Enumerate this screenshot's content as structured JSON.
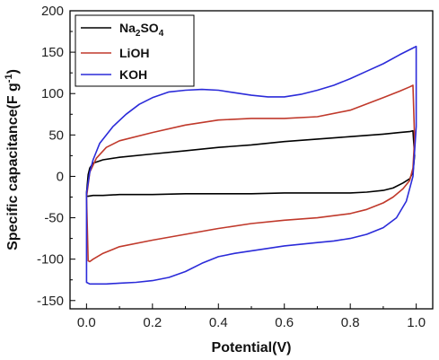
{
  "chart_data": {
    "type": "line",
    "xlabel": "Potential(V)",
    "ylabel": "Specific capacitance(F g",
    "ylabel_sup": "-1",
    "ylabel_end": ")",
    "xlim": [
      -0.05,
      1.05
    ],
    "ylim": [
      -160,
      200
    ],
    "x_ticks": [
      0.0,
      0.2,
      0.4,
      0.6,
      0.8,
      1.0
    ],
    "x_tick_labels": [
      "0.0",
      "0.2",
      "0.4",
      "0.6",
      "0.8",
      "1.0"
    ],
    "y_ticks": [
      -150,
      -100,
      -50,
      0,
      50,
      100,
      150,
      200
    ],
    "y_tick_labels": [
      "-150",
      "-100",
      "-50",
      "0",
      "50",
      "100",
      "150",
      "200"
    ],
    "grid": false,
    "legend_position": "top-left",
    "series": [
      {
        "name": "Na2SO4",
        "name_parts": {
          "a": "Na",
          "sub1": "2",
          "b": "SO",
          "sub2": "4"
        },
        "color": "#000000",
        "x": [
          0.0,
          0.005,
          0.01,
          0.02,
          0.05,
          0.1,
          0.2,
          0.3,
          0.4,
          0.5,
          0.6,
          0.7,
          0.8,
          0.9,
          0.95,
          0.98,
          0.99,
          0.995,
          0.99,
          0.98,
          0.96,
          0.93,
          0.9,
          0.85,
          0.8,
          0.75,
          0.7,
          0.6,
          0.5,
          0.4,
          0.3,
          0.2,
          0.1,
          0.05,
          0.02,
          0.005,
          0.0,
          0.0
        ],
        "y": [
          -20,
          2,
          10,
          16,
          20,
          23,
          27,
          31,
          35,
          38,
          42,
          45,
          48,
          51,
          53,
          54,
          55,
          25,
          5,
          -3,
          -8,
          -14,
          -17,
          -19,
          -20,
          -20,
          -20,
          -20,
          -21,
          -21,
          -21,
          -22,
          -22,
          -23,
          -23,
          -24,
          -24,
          -20
        ]
      },
      {
        "name": "LiOH",
        "color": "#c0392b",
        "x": [
          0.0,
          0.01,
          0.03,
          0.06,
          0.1,
          0.2,
          0.3,
          0.4,
          0.5,
          0.6,
          0.7,
          0.8,
          0.9,
          0.95,
          0.98,
          0.99,
          0.995,
          0.99,
          0.98,
          0.96,
          0.93,
          0.9,
          0.85,
          0.8,
          0.7,
          0.6,
          0.5,
          0.4,
          0.3,
          0.2,
          0.1,
          0.05,
          0.02,
          0.01,
          0.005,
          0.0
        ],
        "y": [
          -25,
          5,
          22,
          35,
          43,
          53,
          62,
          68,
          70,
          70,
          72,
          80,
          95,
          103,
          108,
          110,
          45,
          10,
          -5,
          -15,
          -25,
          -32,
          -40,
          -45,
          -50,
          -53,
          -57,
          -63,
          -70,
          -77,
          -85,
          -93,
          -100,
          -103,
          -102,
          -25
        ]
      },
      {
        "name": "KOH",
        "color": "#2b2bd9",
        "x": [
          0.0,
          0.01,
          0.02,
          0.04,
          0.08,
          0.12,
          0.16,
          0.2,
          0.25,
          0.3,
          0.35,
          0.4,
          0.45,
          0.5,
          0.55,
          0.6,
          0.65,
          0.7,
          0.75,
          0.8,
          0.85,
          0.9,
          0.95,
          0.99,
          1.0,
          1.0,
          0.99,
          0.97,
          0.94,
          0.9,
          0.85,
          0.8,
          0.75,
          0.7,
          0.65,
          0.6,
          0.55,
          0.5,
          0.45,
          0.4,
          0.35,
          0.3,
          0.25,
          0.2,
          0.15,
          0.1,
          0.06,
          0.03,
          0.01,
          0.0,
          0.0
        ],
        "y": [
          -20,
          5,
          20,
          40,
          60,
          75,
          87,
          95,
          102,
          104,
          105,
          104,
          101,
          98,
          96,
          96,
          99,
          104,
          110,
          118,
          127,
          136,
          147,
          155,
          157,
          60,
          0,
          -30,
          -50,
          -62,
          -70,
          -75,
          -78,
          -80,
          -82,
          -84,
          -87,
          -90,
          -93,
          -97,
          -105,
          -115,
          -122,
          -126,
          -128,
          -129,
          -130,
          -130,
          -130,
          -128,
          -20
        ]
      }
    ]
  }
}
